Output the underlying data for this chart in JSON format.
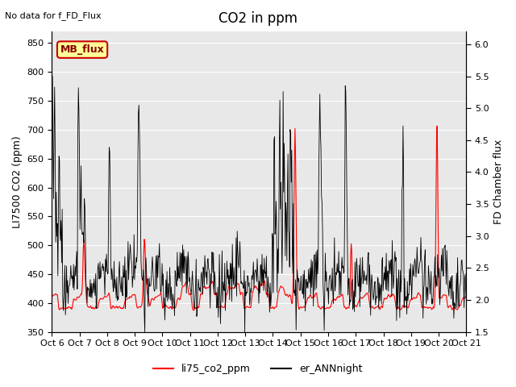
{
  "title": "CO2 in ppm",
  "top_left_text": "No data for f_FD_Flux",
  "legend_box_text": "MB_flux",
  "ylabel_left": "LI7500 CO2 (ppm)",
  "ylabel_right": "FD Chamber flux",
  "ylim_left": [
    350,
    870
  ],
  "ylim_right": [
    1.5,
    6.2
  ],
  "yticks_left": [
    350,
    400,
    450,
    500,
    550,
    600,
    650,
    700,
    750,
    800,
    850
  ],
  "yticks_right": [
    1.5,
    2.0,
    2.5,
    3.0,
    3.5,
    4.0,
    4.5,
    5.0,
    5.5,
    6.0
  ],
  "xtick_labels": [
    "Oct 6",
    "Oct 7",
    "Oct 8",
    "Oct 9",
    "Oct 10",
    "Oct 11",
    "Oct 12",
    "Oct 13",
    "Oct 14",
    "Oct 15",
    "Oct 16",
    "Oct 17",
    "Oct 18",
    "Oct 19",
    "Oct 20",
    "Oct 21"
  ],
  "color_red": "#ff0000",
  "color_black": "#000000",
  "legend_red_label": "li75_co2_ppm",
  "legend_black_label": "er_ANNnight",
  "bg_color": "#e8e8e8",
  "legend_box_color": "#ffff99",
  "legend_box_edge": "#cc0000",
  "grid_color": "#ffffff",
  "title_fontsize": 12,
  "label_fontsize": 9,
  "tick_fontsize": 8
}
